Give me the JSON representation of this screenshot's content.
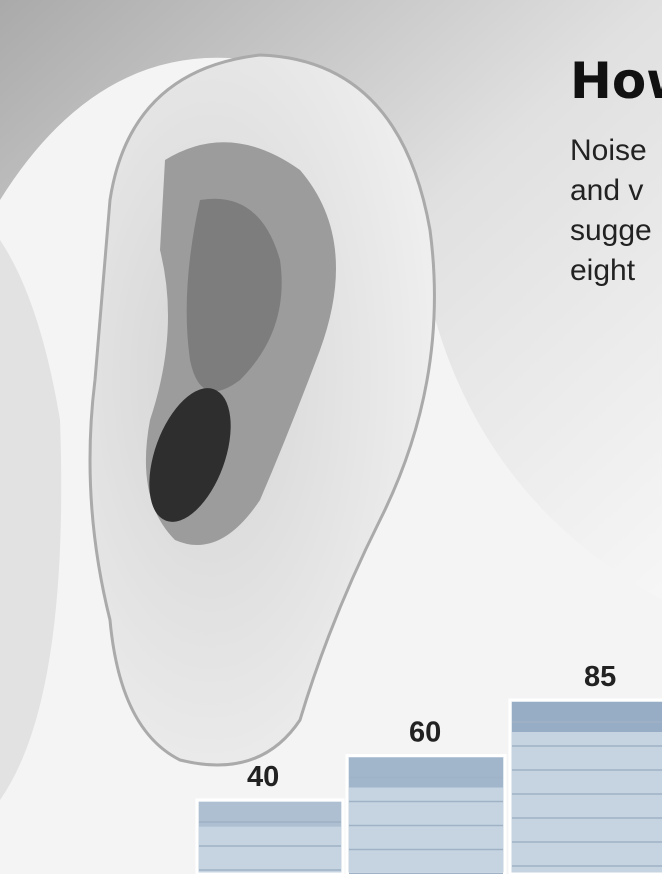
{
  "chart_data": {
    "type": "bar",
    "title": "How",
    "subtitle": [
      "Noise",
      "and v",
      "sugge",
      "eight"
    ],
    "categories": [
      null,
      null,
      null
    ],
    "values": [
      40,
      60,
      85
    ],
    "color": "#c6d4e1"
  }
}
